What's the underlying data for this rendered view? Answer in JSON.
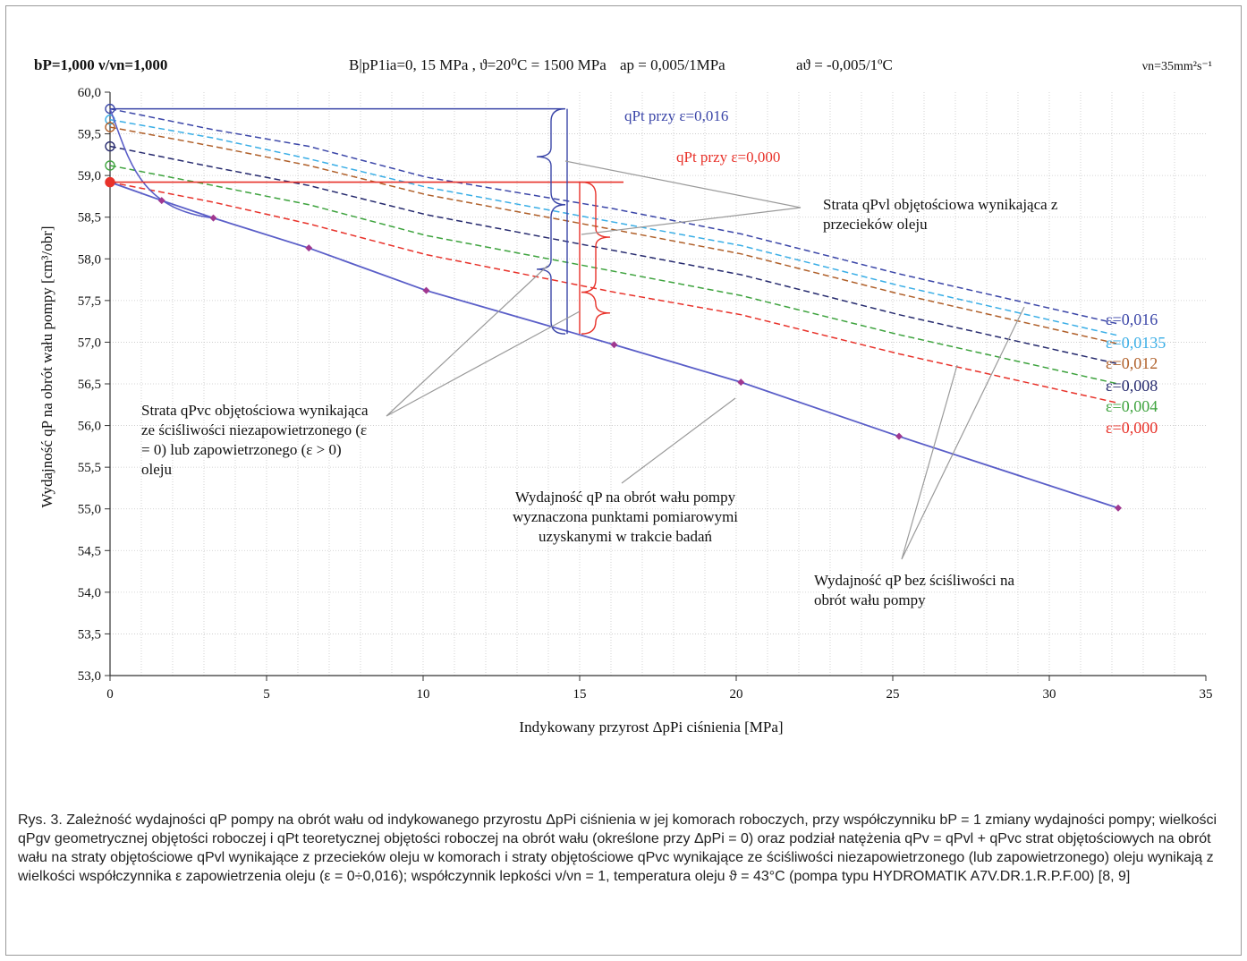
{
  "header": {
    "left": "bP=1,000  ν/νn=1,000",
    "middle": "B|pP1ia=0, 15 MPa , ϑ=20⁰C = 1500 MPa",
    "ap": "ap = 0,005/1MPa",
    "at": "aϑ = -0,005/1ºC",
    "right": "νn=35mm²s⁻¹"
  },
  "chart_data": {
    "type": "line",
    "xlabel": "Indykowany przyrost ΔpPi ciśnienia  [MPa]",
    "ylabel": "Wydajność qP na obrót wału pompy  [cm³/obr]",
    "xlim": [
      0,
      35
    ],
    "ylim": [
      53.0,
      60.0
    ],
    "x_ticks": [
      "0",
      "5",
      "10",
      "15",
      "20",
      "25",
      "30",
      "35"
    ],
    "y_ticks": [
      "53,0",
      "53,5",
      "54,0",
      "54,5",
      "55,0",
      "55,5",
      "56,0",
      "56,5",
      "57,0",
      "57,5",
      "58,0",
      "58,5",
      "59,0",
      "59,5",
      "60,0"
    ],
    "grid": true,
    "measured": {
      "name": "qP",
      "color": "#5a5ec8",
      "x": [
        0,
        1.65,
        3.3,
        6.35,
        10.1,
        16.1,
        20.15,
        25.2,
        32.2
      ],
      "y": [
        58.92,
        58.7,
        58.49,
        58.13,
        57.62,
        56.97,
        56.52,
        55.87,
        55.01
      ]
    },
    "series": [
      {
        "name": "ε=0,016",
        "color": "#3b46a8",
        "x": [
          0,
          3.3,
          6.35,
          10.1,
          16.1,
          20.15,
          25.2,
          32.2
        ],
        "y": [
          59.8,
          59.55,
          59.35,
          58.98,
          58.6,
          58.3,
          57.82,
          57.22
        ]
      },
      {
        "name": "ε=0,0135",
        "color": "#3aaee6",
        "x": [
          0,
          3.3,
          6.35,
          10.1,
          16.1,
          20.15,
          25.2,
          32.2
        ],
        "y": [
          59.67,
          59.45,
          59.2,
          58.86,
          58.44,
          58.16,
          57.68,
          57.08
        ]
      },
      {
        "name": "ε=0,012",
        "color": "#b0602a",
        "x": [
          0,
          3.3,
          6.35,
          10.1,
          16.1,
          20.15,
          25.2,
          32.2
        ],
        "y": [
          59.58,
          59.35,
          59.12,
          58.77,
          58.35,
          58.06,
          57.58,
          56.98
        ]
      },
      {
        "name": "ε=0,008",
        "color": "#262a6e",
        "x": [
          0,
          3.3,
          6.35,
          10.1,
          16.1,
          20.15,
          25.2,
          32.2
        ],
        "y": [
          59.35,
          59.1,
          58.88,
          58.53,
          58.1,
          57.81,
          57.33,
          56.74
        ]
      },
      {
        "name": "ε=0,004",
        "color": "#3ea33e",
        "x": [
          0,
          3.3,
          6.35,
          10.1,
          16.1,
          20.15,
          25.2,
          32.2
        ],
        "y": [
          59.12,
          58.88,
          58.65,
          58.28,
          57.85,
          57.56,
          57.09,
          56.5
        ]
      },
      {
        "name": "ε=0,000",
        "color": "#e8322a",
        "x": [
          0,
          3.3,
          6.35,
          10.1,
          16.1,
          20.15,
          25.2,
          32.2
        ],
        "y": [
          58.92,
          58.68,
          58.42,
          58.05,
          57.6,
          57.33,
          56.86,
          56.27
        ]
      }
    ],
    "reference_lines": [
      {
        "label": "qPt przy ε=0,016",
        "y": 59.8,
        "x_end": 14.5,
        "color": "#3b46a8"
      },
      {
        "label": "qPt przy ε=0,000",
        "y": 58.92,
        "x_end": 16.4,
        "color": "#e8322a"
      }
    ],
    "annotations": {
      "strata_qpvl": "Strata qPvl objętościowa wynikająca z przecieków oleju",
      "strata_qpvc": "Strata qPvc objętościowa wynikająca ze ściśliwości niezapowietrzonego (ε = 0) lub zapowietrzonego (ε > 0) oleju",
      "wydajnosc_measured": "Wydajność qP na obrót wału pompy wyznaczona punktami pomiarowymi uzyskanymi w trakcie badań",
      "wydajnosc_bez": "Wydajność qP bez ściśliwości na obrót wału pompy"
    }
  },
  "caption": "Rys. 3. Zależność wydajności qP pompy na obrót wału od indykowanego przyrostu ΔpPi ciśnienia w jej komorach roboczych, przy współczynniku bP = 1 zmiany wydajności pompy; wielkości qPgv geometrycznej objętości roboczej i qPt teoretycznej objętości roboczej na obrót wału (określone przy ΔpPi = 0) oraz podział natężenia qPv = qPvl + qPvc strat objętościowych na obrót wału na straty objętościowe qPvl wynikające z przecieków oleju w komorach i straty objętościowe qPvc wynikające ze ściśliwości niezapowietrzonego (lub zapowietrzonego) oleju wynikają z wielkości współczynnika ε zapowietrzenia oleju (ε = 0÷0,016); współczynnik lepkości ν/νn = 1, temperatura oleju ϑ = 43°C  (pompa typu HYDROMATIK A7V.DR.1.R.P.F.00) [8, 9]"
}
